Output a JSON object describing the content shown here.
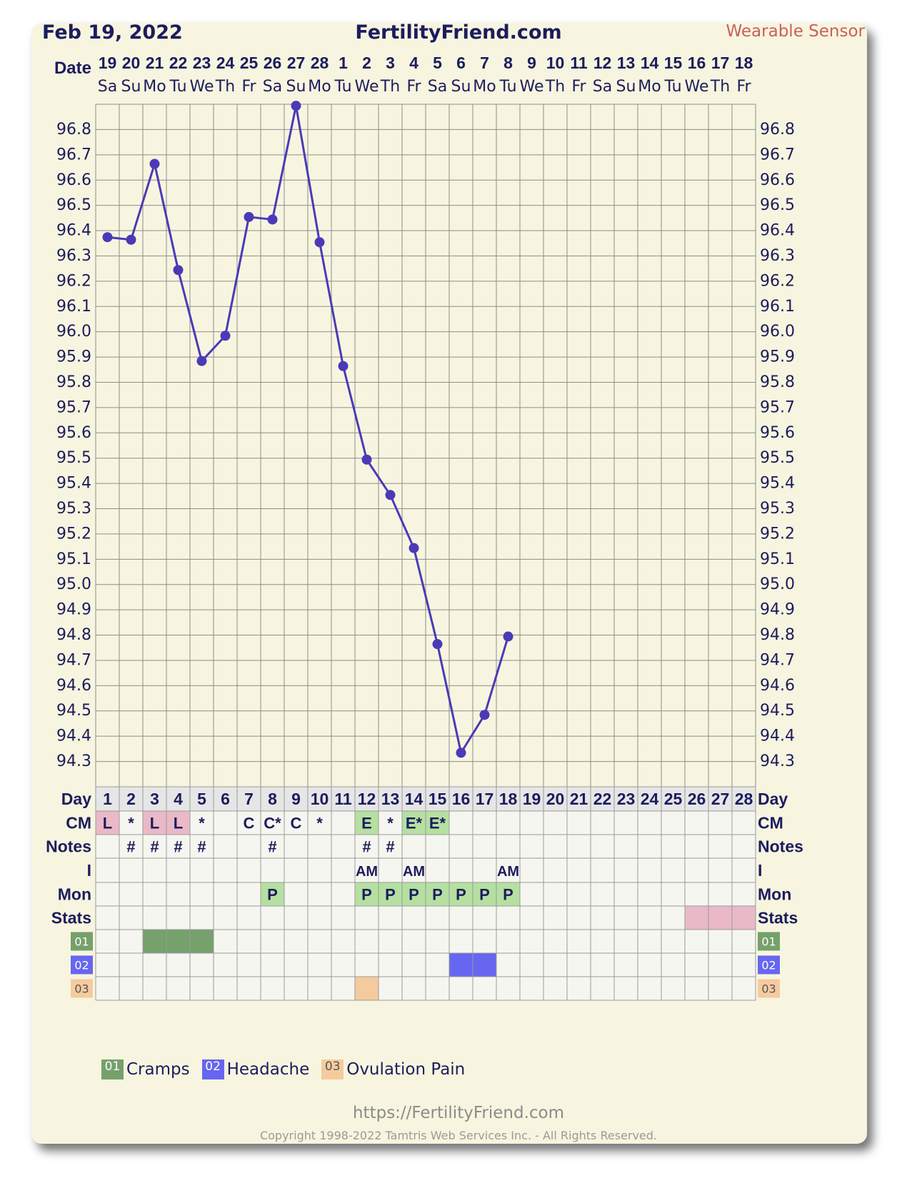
{
  "header": {
    "date": "Feb 19, 2022",
    "site": "FertilityFriend.com",
    "sensor": "Wearable Sensor"
  },
  "row_labels": {
    "date": "Date",
    "day": "Day",
    "cm": "CM",
    "notes": "Notes",
    "intercourse": "I",
    "mon": "Mon",
    "stats": "Stats"
  },
  "chart_data": {
    "type": "line",
    "x_dates": [
      "19",
      "20",
      "21",
      "22",
      "23",
      "24",
      "25",
      "26",
      "27",
      "28",
      "1",
      "2",
      "3",
      "4",
      "5",
      "6",
      "7",
      "8",
      "9",
      "10",
      "11",
      "12",
      "13",
      "14",
      "15",
      "16",
      "17",
      "18"
    ],
    "x_weekdays": [
      "Sa",
      "Su",
      "Mo",
      "Tu",
      "We",
      "Th",
      "Fr",
      "Sa",
      "Su",
      "Mo",
      "Tu",
      "We",
      "Th",
      "Fr",
      "Sa",
      "Su",
      "Mo",
      "Tu",
      "We",
      "Th",
      "Fr",
      "Sa",
      "Su",
      "Mo",
      "Tu",
      "We",
      "Th",
      "Fr"
    ],
    "cycle_days": [
      "1",
      "2",
      "3",
      "4",
      "5",
      "6",
      "7",
      "8",
      "9",
      "10",
      "11",
      "12",
      "13",
      "14",
      "15",
      "16",
      "17",
      "18",
      "19",
      "20",
      "21",
      "22",
      "23",
      "24",
      "25",
      "26",
      "27",
      "28"
    ],
    "series": [
      {
        "values": [
          96.37,
          96.36,
          96.66,
          96.24,
          95.88,
          95.98,
          96.45,
          96.44,
          96.89,
          96.35,
          95.86,
          95.49,
          95.35,
          95.14,
          94.76,
          94.33,
          94.48,
          94.79
        ]
      }
    ],
    "yticks": [
      "96.8",
      "96.7",
      "96.6",
      "96.5",
      "96.4",
      "96.3",
      "96.2",
      "96.1",
      "96.0",
      "95.9",
      "95.8",
      "95.7",
      "95.6",
      "95.5",
      "95.4",
      "95.3",
      "95.2",
      "95.1",
      "95.0",
      "94.9",
      "94.8",
      "94.7",
      "94.6",
      "94.5",
      "94.4",
      "94.3"
    ],
    "ylim": [
      94.19,
      96.9
    ],
    "grid": true,
    "line_color": "#4a3ab8",
    "cm": [
      "L",
      "*",
      "L",
      "L",
      "*",
      "",
      "C",
      "C*",
      "C",
      "*",
      "",
      "E",
      "*",
      "E*",
      "E*",
      "",
      "",
      "",
      "",
      "",
      "",
      "",
      "",
      "",
      "",
      "",
      "",
      ""
    ],
    "cm_highlight": [
      "pink",
      "",
      "pink",
      "pink",
      "",
      "",
      "",
      "",
      "",
      "",
      "",
      "green",
      "",
      "green",
      "green",
      "",
      "",
      "",
      "",
      "",
      "",
      "",
      "",
      "",
      "",
      "",
      "",
      ""
    ],
    "notes": [
      "",
      "#",
      "#",
      "#",
      "#",
      "",
      "",
      "#",
      "",
      "",
      "",
      "#",
      "#",
      "",
      "",
      "",
      "",
      "",
      "",
      "",
      "",
      "",
      "",
      "",
      "",
      "",
      "",
      ""
    ],
    "intercourse": [
      "",
      "",
      "",
      "",
      "",
      "",
      "",
      "",
      "",
      "",
      "",
      "AM",
      "",
      "AM",
      "",
      "",
      "",
      "AM",
      "",
      "",
      "",
      "",
      "",
      "",
      "",
      "",
      "",
      ""
    ],
    "mon": [
      "",
      "",
      "",
      "",
      "",
      "",
      "",
      "P",
      "",
      "",
      "",
      "P",
      "P",
      "P",
      "P",
      "P",
      "P",
      "P",
      "",
      "",
      "",
      "",
      "",
      "",
      "",
      "",
      "",
      ""
    ],
    "stats_highlight_days": [
      26,
      27,
      28
    ],
    "symptoms": [
      {
        "code": "01",
        "name": "Cramps",
        "color": "#76a06c",
        "days": [
          3,
          4,
          5
        ]
      },
      {
        "code": "02",
        "name": "Headache",
        "color": "#6666f0",
        "days": [
          16,
          17
        ]
      },
      {
        "code": "03",
        "name": "Ovulation Pain",
        "color": "#f5cb9e",
        "days": [
          12
        ]
      }
    ],
    "colors": {
      "pink": "#e9b9c7",
      "green": "#b5e0a1",
      "stats": "#e9b9c7",
      "row_bg": "#f6f6f0",
      "header_bg": "#e6e6e6",
      "plot_bg": "#f7f5df"
    }
  },
  "footer": {
    "url": "https://FertilityFriend.com",
    "copyright": "Copyright 1998-2022 Tamtris Web Services Inc. - All Rights Reserved."
  }
}
